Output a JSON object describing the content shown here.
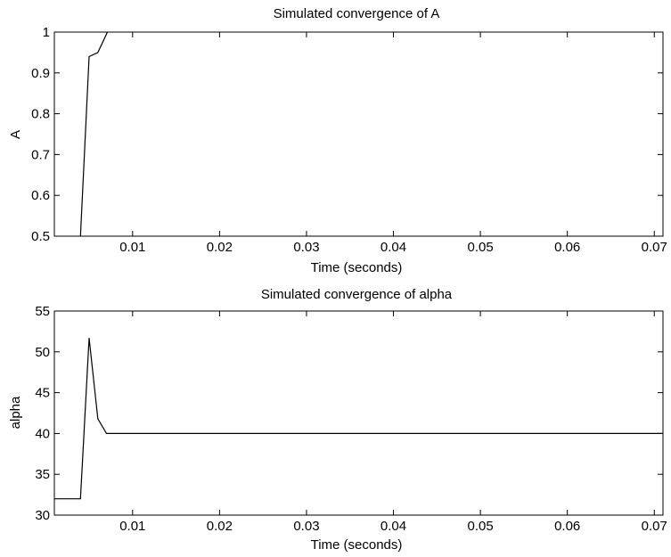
{
  "chart_data": [
    {
      "type": "line",
      "title": "Simulated convergence of A",
      "xlabel": "Time (seconds)",
      "ylabel": "A",
      "xlim": [
        0.001,
        0.071
      ],
      "ylim": [
        0.5,
        1.0
      ],
      "xticks": [
        0.01,
        0.02,
        0.03,
        0.04,
        0.05,
        0.06,
        0.07
      ],
      "xtick_labels": [
        "0.01",
        "0.02",
        "0.03",
        "0.04",
        "0.05",
        "0.06",
        "0.07"
      ],
      "yticks": [
        0.5,
        0.6,
        0.7,
        0.8,
        0.9,
        1.0
      ],
      "ytick_labels": [
        "0.5",
        "0.6",
        "0.7",
        "0.8",
        "0.9",
        "1"
      ],
      "grid": false,
      "series": [
        {
          "color": "#000000",
          "x": [
            0.004,
            0.005,
            0.006,
            0.007,
            0.0071
          ],
          "y": [
            0.5,
            0.94,
            0.95,
            0.995,
            1.0
          ]
        }
      ]
    },
    {
      "type": "line",
      "title": "Simulated convergence of alpha",
      "xlabel": "Time (seconds)",
      "ylabel": "alpha",
      "xlim": [
        0.001,
        0.071
      ],
      "ylim": [
        30,
        55
      ],
      "xticks": [
        0.01,
        0.02,
        0.03,
        0.04,
        0.05,
        0.06,
        0.07
      ],
      "xtick_labels": [
        "0.01",
        "0.02",
        "0.03",
        "0.04",
        "0.05",
        "0.06",
        "0.07"
      ],
      "yticks": [
        30,
        35,
        40,
        45,
        50,
        55
      ],
      "ytick_labels": [
        "30",
        "35",
        "40",
        "45",
        "50",
        "55"
      ],
      "grid": false,
      "series": [
        {
          "color": "#000000",
          "x": [
            0.001,
            0.004,
            0.005,
            0.006,
            0.007,
            0.071
          ],
          "y": [
            32,
            32,
            51.7,
            41.8,
            40,
            40
          ]
        }
      ]
    }
  ]
}
